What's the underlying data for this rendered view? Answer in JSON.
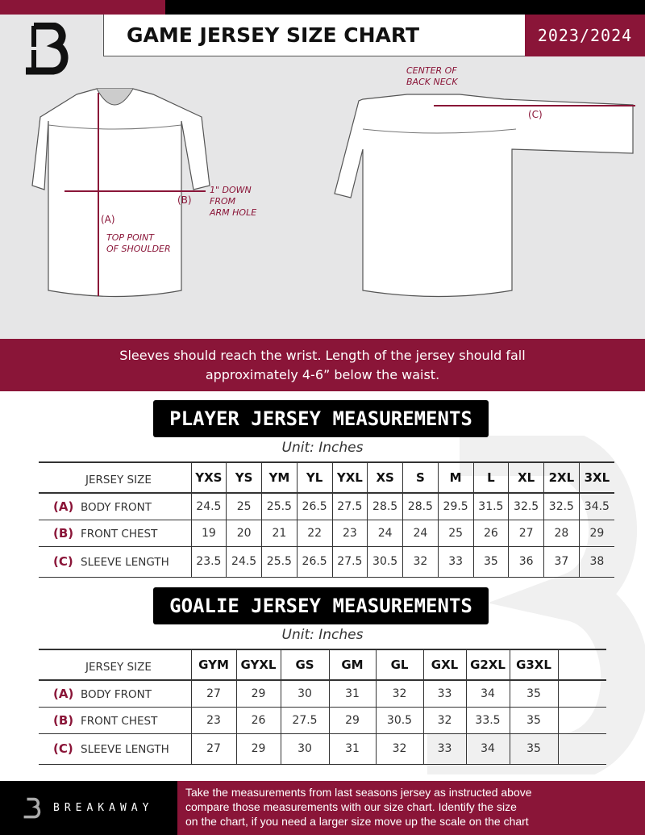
{
  "header": {
    "title": "GAME JERSEY SIZE CHART",
    "season": "2023/2024",
    "logo_letter": "B"
  },
  "colors": {
    "brand": "#8a1538",
    "dark": "#000000",
    "background": "#e6e6e7"
  },
  "diagram": {
    "center_back_neck": [
      "CENTER OF",
      "BACK NECK"
    ],
    "label_a": "(A)",
    "label_b": "(B)",
    "label_c": "(C)",
    "arm_hole_note": [
      "1\" DOWN",
      "FROM",
      "ARM HOLE"
    ],
    "shoulder_note": [
      "TOP POINT",
      "OF SHOULDER"
    ]
  },
  "banner": {
    "line1": "Sleeves should reach the wrist. Length of the jersey should fall",
    "line2": "approximately 4-6” below the waist."
  },
  "player": {
    "title": "PLAYER JERSEY MEASUREMENTS",
    "unit": "Unit: Inches",
    "size_header": "JERSEY SIZE",
    "sizes": [
      "YXS",
      "YS",
      "YM",
      "YL",
      "YXL",
      "XS",
      "S",
      "M",
      "L",
      "XL",
      "2XL",
      "3XL"
    ],
    "rows": [
      {
        "letter": "(A)",
        "label": "BODY FRONT",
        "values": [
          "24.5",
          "25",
          "25.5",
          "26.5",
          "27.5",
          "28.5",
          "28.5",
          "29.5",
          "31.5",
          "32.5",
          "32.5",
          "34.5"
        ]
      },
      {
        "letter": "(B)",
        "label": "FRONT CHEST",
        "values": [
          "19",
          "20",
          "21",
          "22",
          "23",
          "24",
          "24",
          "25",
          "26",
          "27",
          "28",
          "29"
        ]
      },
      {
        "letter": "(C)",
        "label": "SLEEVE LENGTH",
        "values": [
          "23.5",
          "24.5",
          "25.5",
          "26.5",
          "27.5",
          "30.5",
          "32",
          "33",
          "35",
          "36",
          "37",
          "38"
        ]
      }
    ]
  },
  "goalie": {
    "title": "GOALIE JERSEY MEASUREMENTS",
    "unit": "Unit: Inches",
    "size_header": "JERSEY SIZE",
    "sizes": [
      "GYM",
      "GYXL",
      "GS",
      "GM",
      "GL",
      "GXL",
      "G2XL",
      "G3XL",
      ""
    ],
    "rows": [
      {
        "letter": "(A)",
        "label": "BODY FRONT",
        "values": [
          "27",
          "29",
          "30",
          "31",
          "32",
          "33",
          "34",
          "35",
          ""
        ]
      },
      {
        "letter": "(B)",
        "label": "FRONT CHEST",
        "values": [
          "23",
          "26",
          "27.5",
          "29",
          "30.5",
          "32",
          "33.5",
          "35",
          ""
        ]
      },
      {
        "letter": "(C)",
        "label": "SLEEVE LENGTH",
        "values": [
          "27",
          "29",
          "30",
          "31",
          "32",
          "33",
          "34",
          "35",
          ""
        ]
      }
    ]
  },
  "footer": {
    "brand": "BREAKAWAY",
    "text": [
      "Take the measurements from last seasons jersey as instructed above",
      "compare those measurements  with our size chart. Identify the size",
      "on the chart, if you need a larger size move up the scale on the chart"
    ]
  }
}
